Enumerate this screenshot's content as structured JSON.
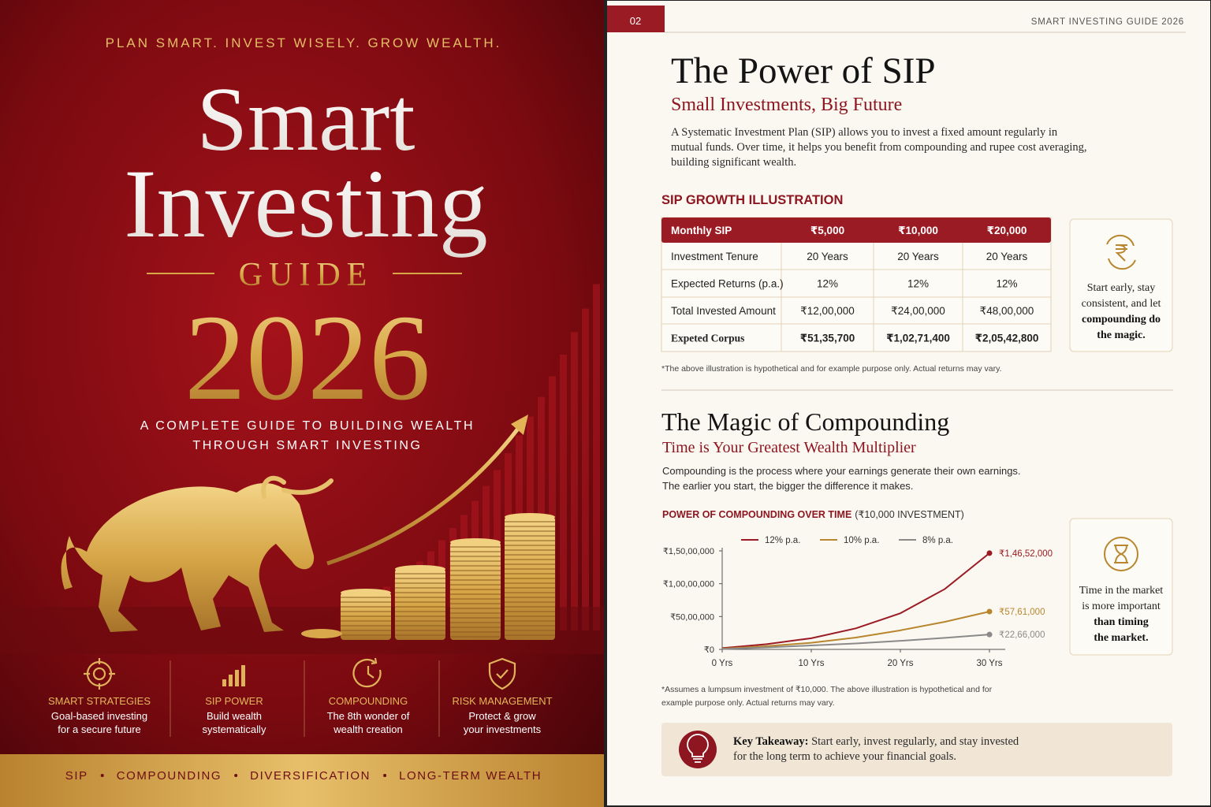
{
  "cover": {
    "tagline": "PLAN SMART. INVEST WISELY. GROW WEALTH.",
    "title": [
      "Smart",
      "Investing"
    ],
    "guide": "GUIDE",
    "year": "2026",
    "subtitle": [
      "A COMPLETE GUIDE TO BUILDING WEALTH",
      "THROUGH SMART INVESTING"
    ],
    "features": [
      {
        "title": "SMART STRATEGIES",
        "text": [
          "Goal-based investing",
          "for a secure future"
        ]
      },
      {
        "title": "SIP POWER",
        "text": [
          "Build wealth",
          "systematically"
        ]
      },
      {
        "title": "COMPOUNDING",
        "text": [
          "The 8th wonder of",
          "wealth creation"
        ]
      },
      {
        "title": "RISK MANAGEMENT",
        "text": [
          "Protect & grow",
          "your investments"
        ]
      }
    ],
    "footer": [
      "SIP",
      "COMPOUNDING",
      "DIVERSIFICATION",
      "LONG-TERM WEALTH"
    ]
  },
  "page": {
    "number": "02",
    "running_head": "SMART INVESTING GUIDE 2026"
  },
  "sip": {
    "title": "The Power of SIP",
    "subtitle": "Small Investments, Big Future",
    "body": [
      "A Systematic Investment Plan (SIP) allows you to invest a fixed amount regularly in",
      "mutual funds. Over time, it helps you benefit from compounding and rupee cost averaging,",
      "building significant wealth."
    ],
    "table_title": "SIP GROWTH ILLUSTRATION",
    "table": {
      "header": [
        "Monthly SIP",
        "₹5,000",
        "₹10,000",
        "₹20,000"
      ],
      "rows": [
        [
          "Investment Tenure",
          "20 Years",
          "20 Years",
          "20 Years"
        ],
        [
          "Expected Returns (p.a.)",
          "12%",
          "12%",
          "12%"
        ],
        [
          "Total Invested Amount",
          "₹12,00,000",
          "₹24,00,000",
          "₹48,00,000"
        ],
        [
          "Expeted Corpus",
          "₹51,35,700",
          "₹1,02,71,400",
          "₹2,05,42,800"
        ]
      ]
    },
    "note": "*The above illustration is hypothetical and for example purpose only. Actual returns may vary.",
    "tip": {
      "text": [
        "Start early, stay",
        "consistent, and let"
      ],
      "emphasis": [
        "compounding do",
        "the magic."
      ]
    }
  },
  "compounding": {
    "title": "The Magic of Compounding",
    "subtitle": "Time is Your Greatest Wealth Multiplier",
    "body": [
      "Compounding is the process where your earnings generate their own earnings.",
      "The earlier you start, the bigger the difference it makes."
    ],
    "footnote": [
      "*Assumes a lumpsum investment of ₹10,000. The above illustration is hypothetical and for",
      "example purpose only. Actual returns may vary."
    ],
    "tip": {
      "text": [
        "Time in the market",
        "is more important"
      ],
      "emphasis": [
        "than timing",
        "the market."
      ]
    },
    "takeaway": {
      "label": "Key Takeaway:",
      "text": [
        " Start early, invest regularly, and stay invested",
        "for the long term to achieve your financial goals."
      ]
    }
  },
  "chart_data": {
    "type": "line",
    "title": "POWER OF COMPOUNDING OVER TIME",
    "subtitle": "(₹10,000 INVESTMENT)",
    "x": [
      0,
      5,
      10,
      15,
      20,
      25,
      30
    ],
    "xlim": [
      0,
      30
    ],
    "xticks": [
      {
        "value": 0,
        "label": "0 Yrs"
      },
      {
        "value": 10,
        "label": "10 Yrs"
      },
      {
        "value": 20,
        "label": "20 Yrs"
      },
      {
        "value": 30,
        "label": "30 Yrs"
      }
    ],
    "ylim": [
      0,
      15000000
    ],
    "yticks": [
      {
        "value": 0,
        "label": "₹0"
      },
      {
        "value": 5000000,
        "label": "₹50,00,000"
      },
      {
        "value": 10000000,
        "label": "₹1,00,00,000"
      },
      {
        "value": 15000000,
        "label": "₹1,50,00,000"
      }
    ],
    "legend": "top",
    "series": [
      {
        "name": "12% p.a.",
        "color": "#9b1b24",
        "values": [
          200000,
          800000,
          1700000,
          3200000,
          5500000,
          9200000,
          14652000
        ],
        "value_labels": [
          null,
          null,
          null,
          null,
          null,
          null,
          "₹1,46,52,000"
        ]
      },
      {
        "name": "10% p.a.",
        "color": "#b8862e",
        "values": [
          100000,
          500000,
          1000000,
          1800000,
          2900000,
          4200000,
          5761000
        ],
        "value_labels": [
          null,
          null,
          null,
          null,
          null,
          null,
          "₹57,61,000"
        ]
      },
      {
        "name": "8% p.a.",
        "color": "#8a8a8a",
        "values": [
          50000,
          300000,
          600000,
          900000,
          1300000,
          1750000,
          2266000
        ],
        "value_labels": [
          null,
          null,
          null,
          null,
          null,
          null,
          "₹22,66,000"
        ]
      }
    ]
  }
}
